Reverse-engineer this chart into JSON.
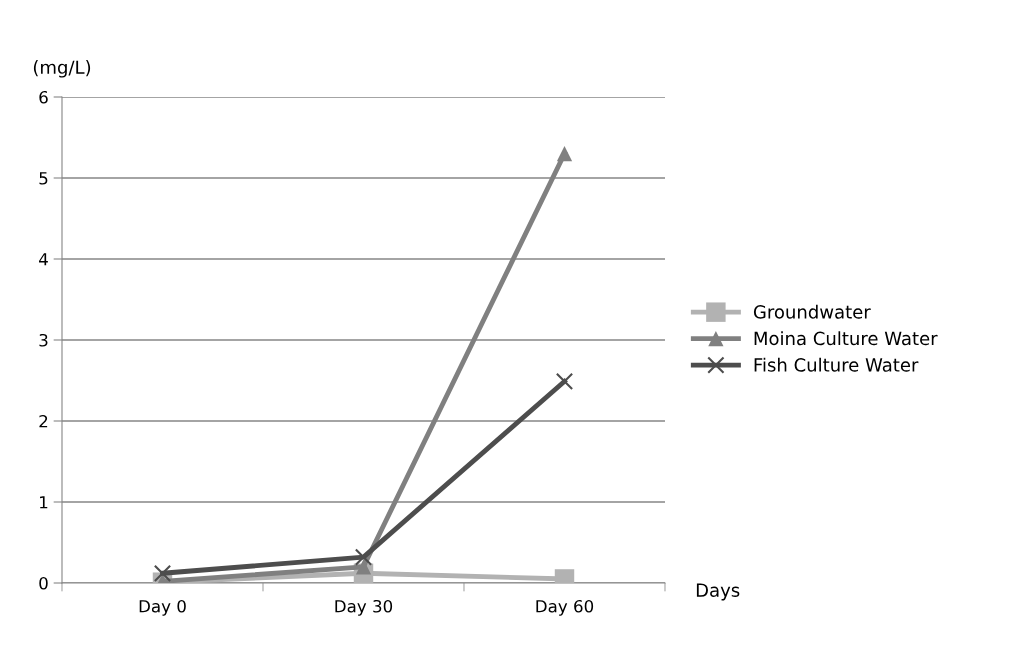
{
  "chart_data": {
    "type": "line",
    "xlabel": "Days",
    "ylabel": "(mg/L)",
    "categories": [
      "Day 0",
      "Day 30",
      "Day 60"
    ],
    "series": [
      {
        "name": "Groundwater",
        "color": "#b2b2b2",
        "marker": "square",
        "values": [
          0.01,
          0.12,
          0.05
        ]
      },
      {
        "name": "Moina Culture Water",
        "color": "#808080",
        "marker": "triangle",
        "values": [
          0.02,
          0.2,
          5.3
        ]
      },
      {
        "name": "Fish Culture Water",
        "color": "#4d4d4d",
        "marker": "cross",
        "values": [
          0.12,
          0.32,
          2.49
        ]
      }
    ],
    "ylim": [
      0,
      6
    ],
    "yticks": [
      0,
      1,
      2,
      3,
      4,
      5,
      6
    ],
    "grid": "y",
    "legend": "right",
    "line_style": "solid"
  }
}
